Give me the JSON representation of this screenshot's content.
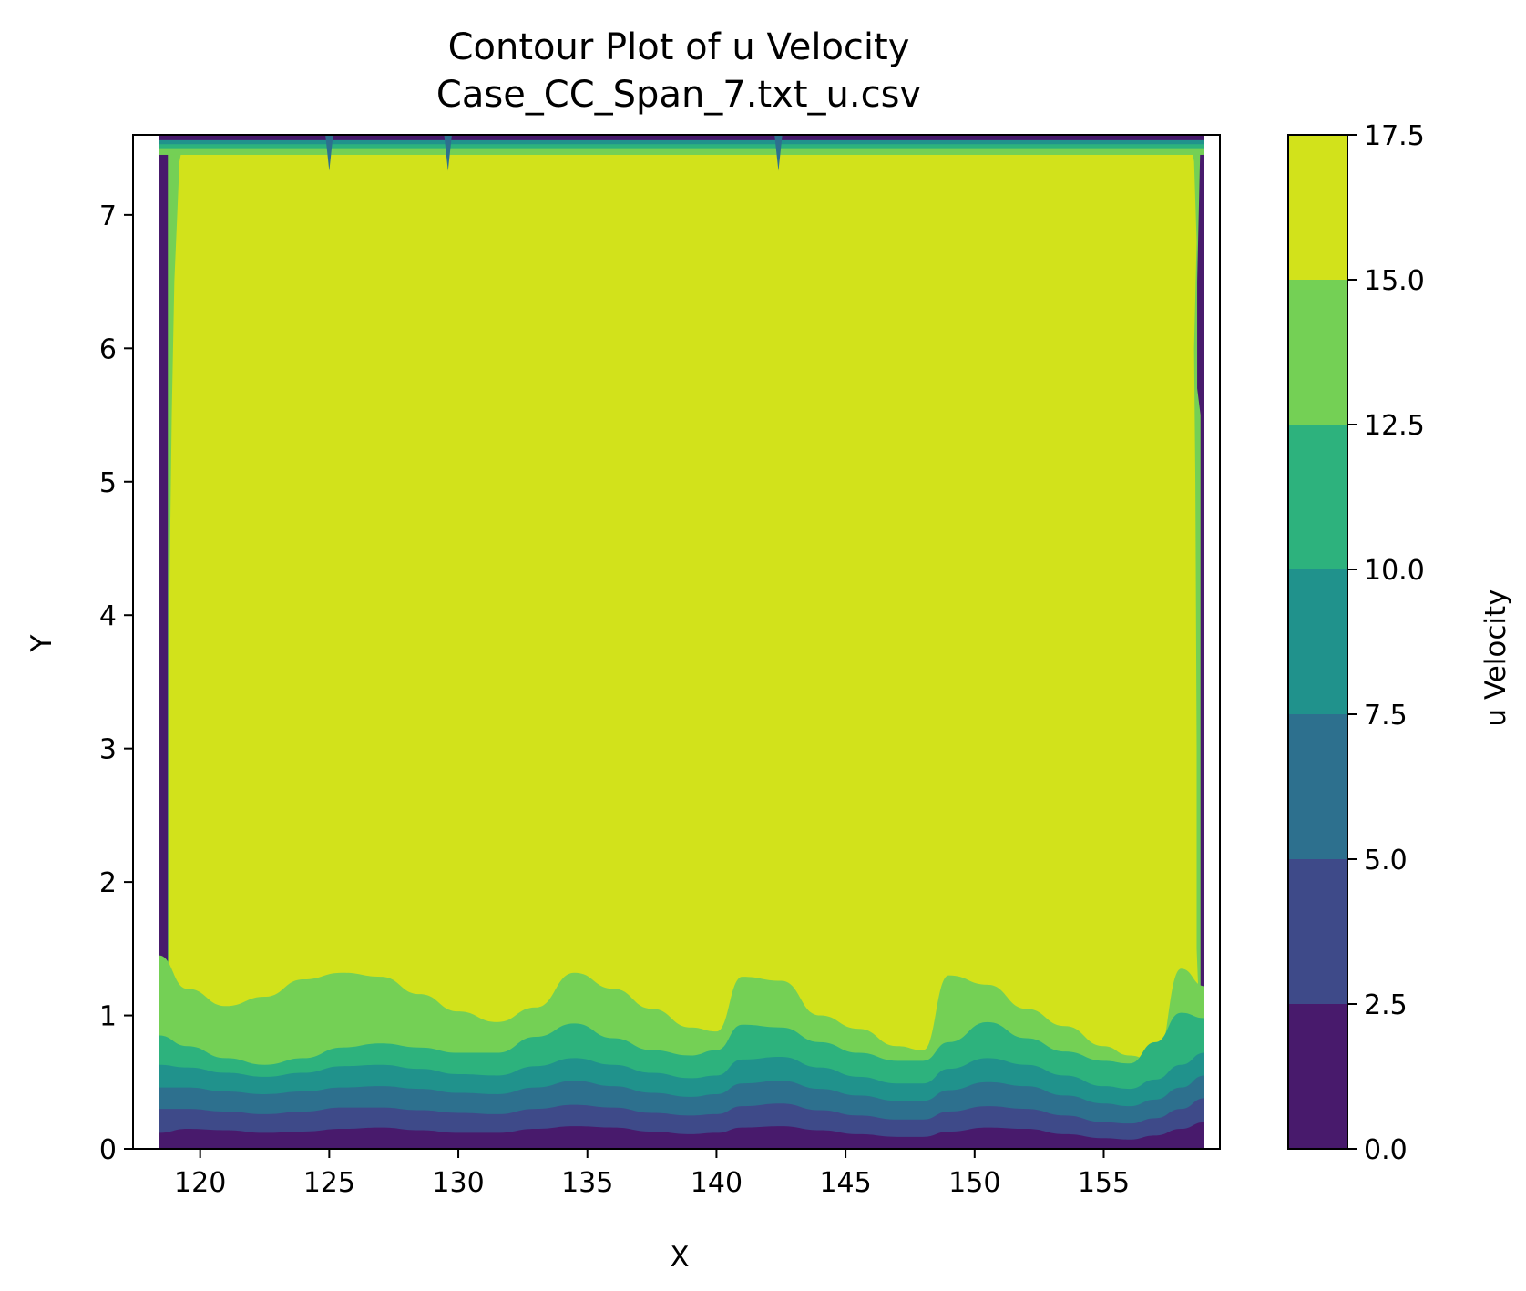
{
  "chart_data": {
    "type": "contour",
    "title": "Contour Plot of u Velocity",
    "subtitle": "Case_CC_Span_7.txt_u.csv",
    "xlabel": "X",
    "ylabel": "Y",
    "xlim": [
      117.4,
      159.5
    ],
    "ylim": [
      0,
      7.6
    ],
    "xticks": [
      "120",
      "125",
      "130",
      "135",
      "140",
      "145",
      "150",
      "155"
    ],
    "yticks": [
      "0",
      "1",
      "2",
      "3",
      "4",
      "5",
      "6",
      "7"
    ],
    "data_extent": {
      "x": [
        118.4,
        158.9
      ],
      "y": [
        0,
        7.6
      ]
    },
    "colorbar": {
      "label": "u Velocity",
      "ticks": [
        "0.0",
        "2.5",
        "5.0",
        "7.5",
        "10.0",
        "12.5",
        "15.0",
        "17.5"
      ],
      "levels": [
        0,
        2.5,
        5,
        7.5,
        10,
        12.5,
        15,
        17.5
      ],
      "colors": [
        "#481a6c",
        "#3e4a89",
        "#2d708e",
        "#20928c",
        "#2db27d",
        "#74d055",
        "#d2e21b"
      ]
    },
    "contour_boundaries": {
      "x": [
        118.4,
        119.5,
        121,
        122.5,
        124,
        125.5,
        127,
        128.5,
        130,
        131.5,
        133,
        134.5,
        136,
        137.5,
        139,
        140,
        141,
        142.5,
        144,
        145.5,
        147,
        148,
        149,
        150.5,
        152,
        153.5,
        155,
        156,
        157,
        158,
        158.9
      ],
      "levels": [
        {
          "u": 2.5,
          "y": [
            0.12,
            0.15,
            0.14,
            0.12,
            0.13,
            0.15,
            0.16,
            0.14,
            0.12,
            0.12,
            0.15,
            0.17,
            0.16,
            0.13,
            0.11,
            0.12,
            0.16,
            0.17,
            0.14,
            0.11,
            0.09,
            0.09,
            0.13,
            0.16,
            0.15,
            0.11,
            0.08,
            0.07,
            0.1,
            0.15,
            0.2
          ]
        },
        {
          "u": 5.0,
          "y": [
            0.3,
            0.3,
            0.28,
            0.26,
            0.28,
            0.31,
            0.31,
            0.29,
            0.27,
            0.26,
            0.3,
            0.33,
            0.31,
            0.27,
            0.25,
            0.26,
            0.32,
            0.34,
            0.29,
            0.25,
            0.22,
            0.22,
            0.28,
            0.32,
            0.3,
            0.25,
            0.2,
            0.19,
            0.23,
            0.3,
            0.38
          ]
        },
        {
          "u": 7.5,
          "y": [
            0.46,
            0.46,
            0.43,
            0.41,
            0.43,
            0.46,
            0.47,
            0.45,
            0.42,
            0.41,
            0.46,
            0.51,
            0.47,
            0.42,
            0.39,
            0.41,
            0.49,
            0.51,
            0.45,
            0.4,
            0.36,
            0.36,
            0.44,
            0.5,
            0.47,
            0.4,
            0.34,
            0.32,
            0.37,
            0.46,
            0.55
          ]
        },
        {
          "u": 10.0,
          "y": [
            0.63,
            0.61,
            0.57,
            0.54,
            0.57,
            0.62,
            0.63,
            0.6,
            0.56,
            0.55,
            0.62,
            0.68,
            0.63,
            0.57,
            0.53,
            0.55,
            0.67,
            0.69,
            0.61,
            0.54,
            0.49,
            0.49,
            0.6,
            0.68,
            0.63,
            0.55,
            0.47,
            0.45,
            0.52,
            0.63,
            0.72
          ]
        },
        {
          "u": 12.5,
          "y": [
            0.85,
            0.77,
            0.68,
            0.63,
            0.68,
            0.76,
            0.79,
            0.76,
            0.72,
            0.72,
            0.84,
            0.94,
            0.83,
            0.74,
            0.7,
            0.74,
            0.93,
            0.91,
            0.8,
            0.72,
            0.66,
            0.66,
            0.8,
            0.95,
            0.83,
            0.73,
            0.66,
            0.64,
            0.8,
            1.02,
            0.98
          ]
        },
        {
          "u": 15.0,
          "y": [
            1.45,
            1.2,
            1.07,
            1.14,
            1.27,
            1.32,
            1.29,
            1.16,
            1.03,
            0.95,
            1.06,
            1.32,
            1.2,
            1.05,
            0.91,
            0.88,
            1.29,
            1.26,
            1.0,
            0.9,
            0.77,
            0.74,
            1.3,
            1.23,
            1.05,
            0.92,
            0.77,
            0.7,
            0.65,
            1.35,
            1.22
          ]
        }
      ]
    }
  }
}
